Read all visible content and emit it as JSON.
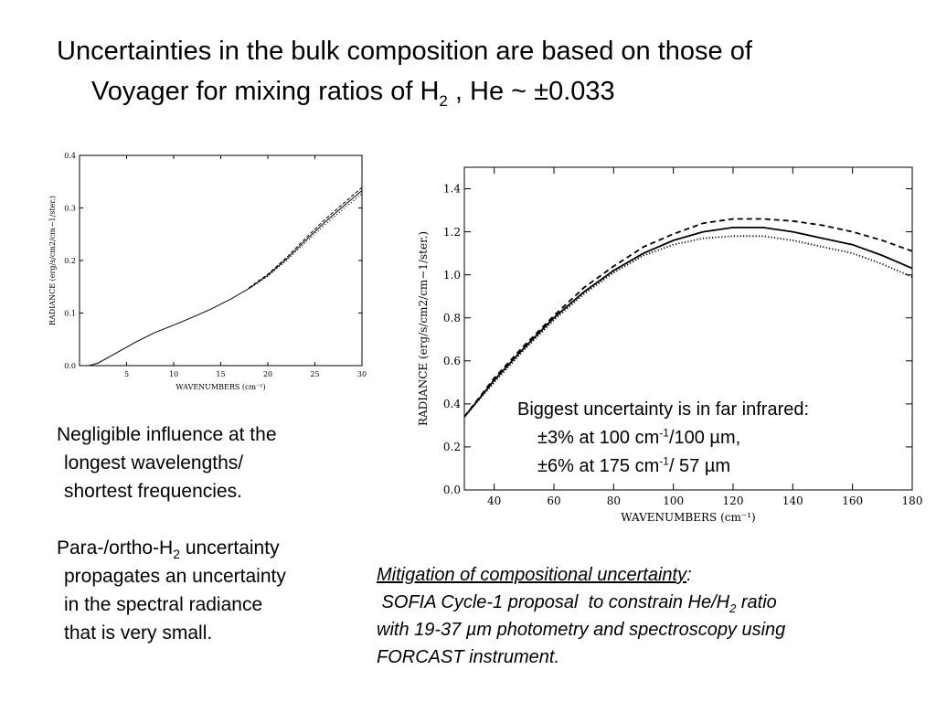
{
  "title": {
    "line1": "Uncertainties in the bulk composition are based on those of",
    "line2_pre": "Voyager for mixing ratios of H",
    "line2_sub": "2",
    "line2_post": " , He ~ ±0.033"
  },
  "left_text": {
    "p1": [
      "Negligible influence at the",
      "longest wavelengths/",
      "shortest frequencies."
    ],
    "p2_l1_pre": "Para-/ortho-H",
    "p2_l1_sub": "2",
    "p2_l1_post": " uncertainty",
    "p2_rest": [
      "propagates an uncertainty",
      "in the spectral radiance",
      "that is very small."
    ]
  },
  "note": {
    "l1": "Biggest uncertainty is in far infrared:",
    "l2_a": "±3% at 100 cm",
    "l2_sup": "-1",
    "l2_b": "/100 µm,",
    "l3_a": "±6% at 175 cm",
    "l3_sup": "-1",
    "l3_b": "/ 57 µm"
  },
  "mitigation": {
    "heading": "Mitigation of compositional uncertainty",
    "colon": ":",
    "l2_pre": " SOFIA Cycle-1 proposal  to constrain He/H",
    "l2_sub": "2",
    "l2_post": " ratio",
    "l3": "with 19-37 µm photometry and spectroscopy using",
    "l4": "FORCAST instrument."
  },
  "chart_data": [
    {
      "type": "line",
      "xlabel": "WAVENUMBERS (cm⁻¹)",
      "ylabel": "RADIANCE (erg/s/cm2/cm−1/ster.)",
      "xlim": [
        0,
        30
      ],
      "ylim": [
        0,
        0.4
      ],
      "xticks": [
        5,
        10,
        15,
        20,
        25,
        30
      ],
      "yticks": [
        0.0,
        0.1,
        0.2,
        0.3,
        0.4
      ],
      "series": [
        {
          "style": "solid",
          "x": [
            1,
            2,
            4,
            6,
            8,
            10,
            12,
            14,
            16,
            18,
            20,
            22,
            24,
            26,
            28,
            30
          ],
          "y": [
            0.0,
            0.005,
            0.025,
            0.045,
            0.063,
            0.077,
            0.092,
            0.108,
            0.126,
            0.147,
            0.172,
            0.203,
            0.238,
            0.272,
            0.303,
            0.333
          ]
        },
        {
          "style": "dashed",
          "x": [
            18,
            20,
            22,
            24,
            26,
            28,
            30
          ],
          "y": [
            0.148,
            0.174,
            0.206,
            0.242,
            0.277,
            0.308,
            0.339
          ]
        },
        {
          "style": "dotted",
          "x": [
            18,
            20,
            22,
            24,
            26,
            28,
            30
          ],
          "y": [
            0.146,
            0.17,
            0.2,
            0.234,
            0.267,
            0.298,
            0.327
          ]
        }
      ]
    },
    {
      "type": "line",
      "xlabel": "WAVENUMBERS (cm⁻¹)",
      "ylabel": "RADIANCE (erg/s/cm2/cm−1/ster.)",
      "xlim": [
        30,
        180
      ],
      "ylim": [
        0,
        1.5
      ],
      "xticks": [
        40,
        60,
        80,
        100,
        120,
        140,
        160,
        180
      ],
      "yticks": [
        0.0,
        0.2,
        0.4,
        0.6,
        0.8,
        1.0,
        1.2,
        1.4
      ],
      "series": [
        {
          "style": "solid",
          "x": [
            30,
            40,
            50,
            60,
            70,
            80,
            90,
            100,
            110,
            120,
            130,
            140,
            150,
            160,
            170,
            180
          ],
          "y": [
            0.34,
            0.51,
            0.66,
            0.8,
            0.92,
            1.02,
            1.1,
            1.16,
            1.2,
            1.22,
            1.22,
            1.2,
            1.17,
            1.14,
            1.09,
            1.03
          ]
        },
        {
          "style": "dashed",
          "x": [
            30,
            40,
            50,
            60,
            70,
            80,
            90,
            100,
            110,
            120,
            130,
            140,
            150,
            160,
            170,
            180
          ],
          "y": [
            0.34,
            0.52,
            0.67,
            0.81,
            0.94,
            1.04,
            1.13,
            1.19,
            1.24,
            1.26,
            1.26,
            1.25,
            1.23,
            1.2,
            1.16,
            1.11
          ]
        },
        {
          "style": "dotted",
          "x": [
            30,
            40,
            50,
            60,
            70,
            80,
            90,
            100,
            110,
            120,
            130,
            140,
            150,
            160,
            170,
            180
          ],
          "y": [
            0.34,
            0.5,
            0.65,
            0.79,
            0.91,
            1.01,
            1.09,
            1.14,
            1.17,
            1.18,
            1.18,
            1.16,
            1.13,
            1.1,
            1.05,
            0.99
          ]
        }
      ]
    }
  ]
}
